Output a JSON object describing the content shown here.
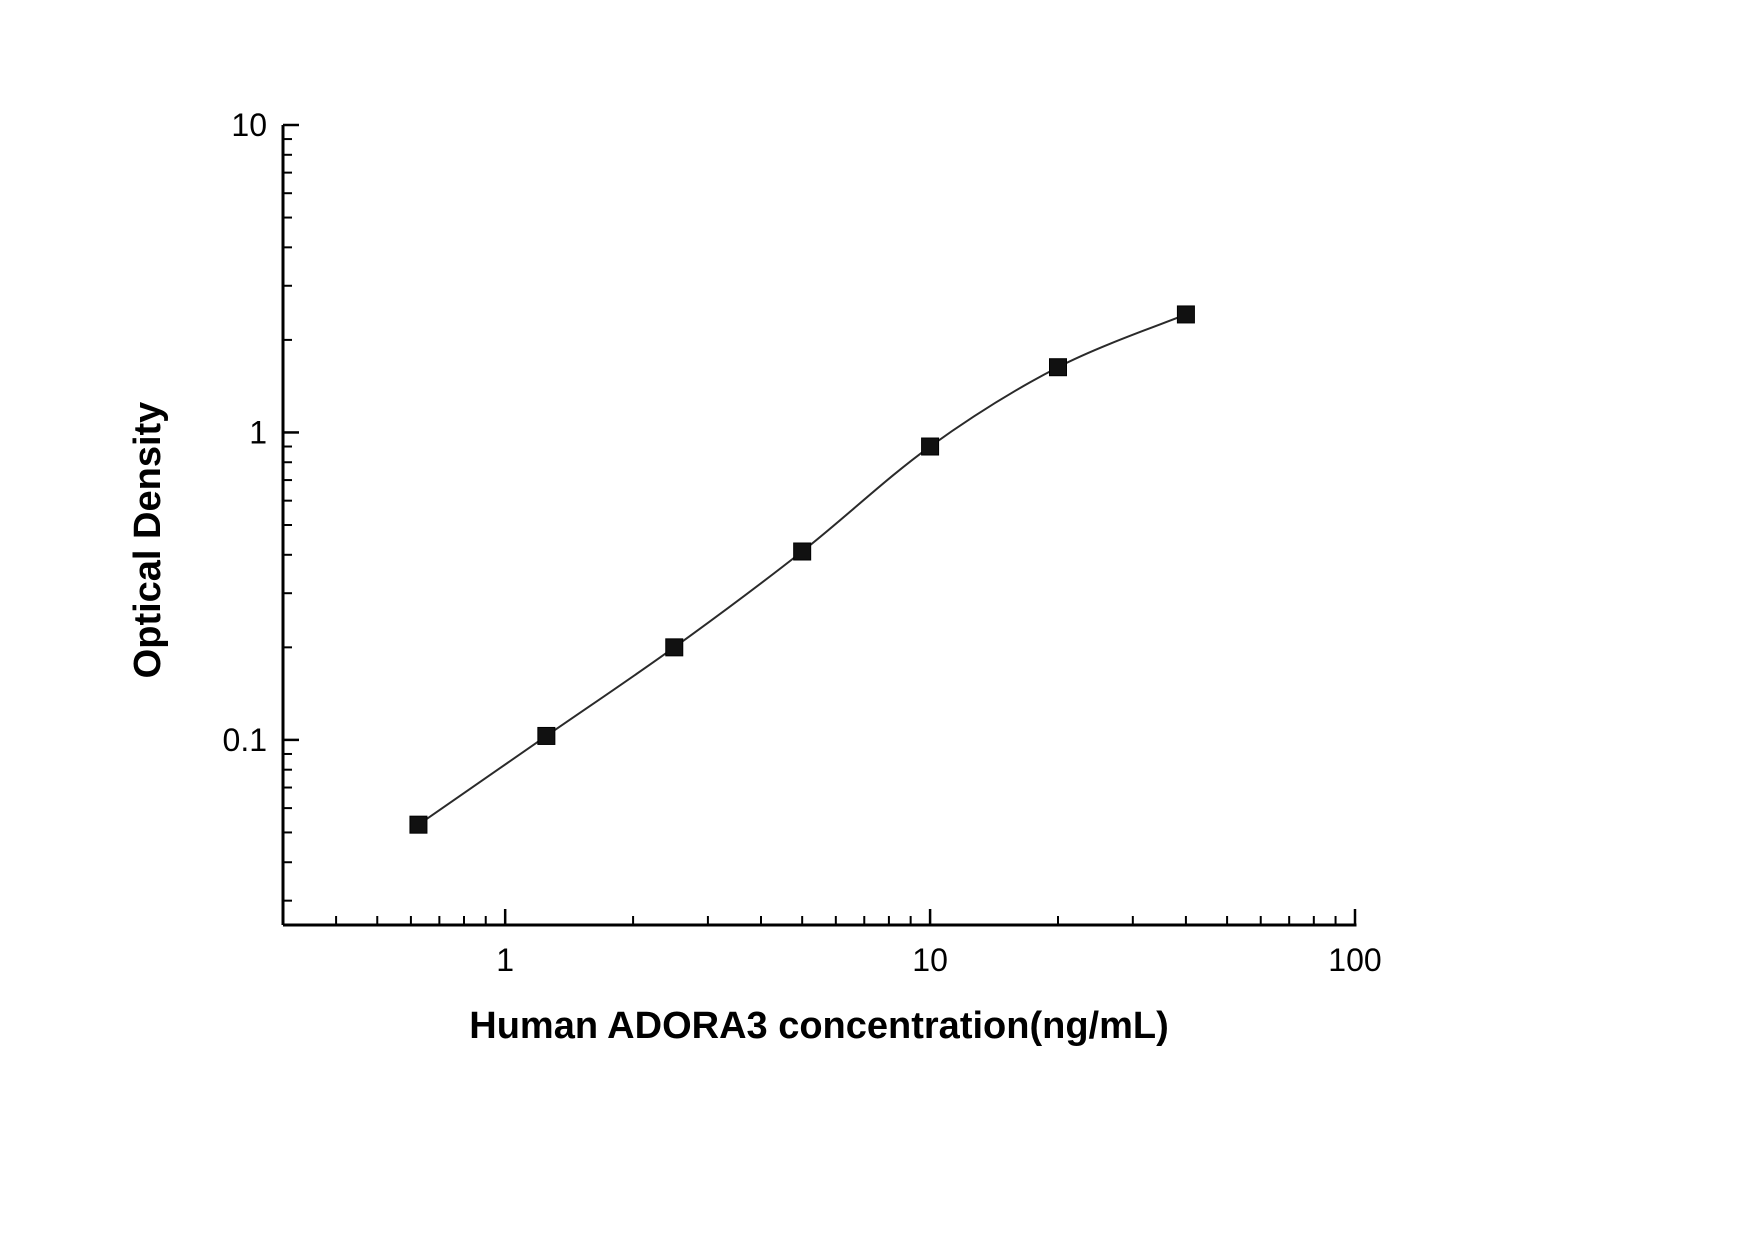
{
  "chart_data": {
    "type": "scatter",
    "title": "",
    "xlabel": "Human ADORA3 concentration(ng/mL)",
    "ylabel": "Optical Density",
    "xscale": "log",
    "yscale": "log",
    "xlim": [
      0.3,
      100
    ],
    "ylim": [
      0.025,
      10
    ],
    "x_ticks": [
      1,
      10,
      100
    ],
    "x_tick_labels": [
      "1",
      "10",
      "100"
    ],
    "y_ticks": [
      0.1,
      1,
      10
    ],
    "y_tick_labels": [
      "0.1",
      "1",
      "10"
    ],
    "grid": false,
    "legend": "none",
    "series": [
      {
        "name": "standard-curve",
        "marker": "square",
        "marker_color": "#111111",
        "line_color": "#2a2a2a",
        "x": [
          0.625,
          1.25,
          2.5,
          5,
          10,
          20,
          40
        ],
        "y": [
          0.053,
          0.103,
          0.2,
          0.41,
          0.9,
          1.63,
          2.42
        ]
      }
    ]
  }
}
